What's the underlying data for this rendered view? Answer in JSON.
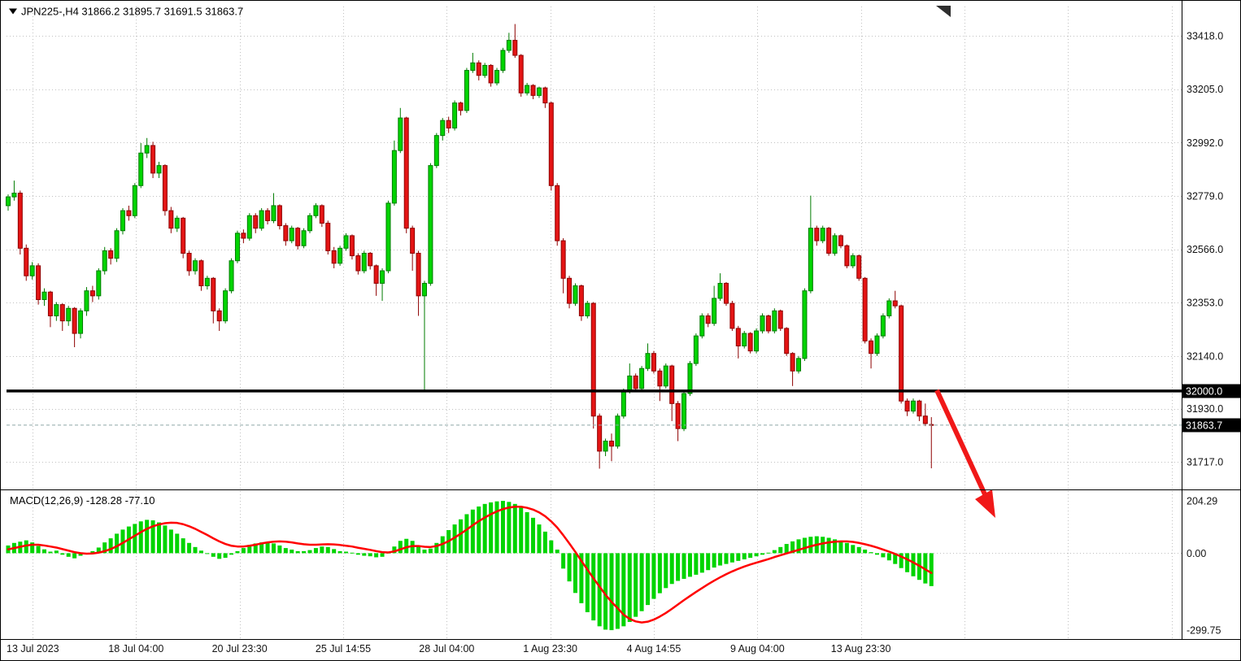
{
  "header": {
    "symbol_info": "JPN225-,H4  31866.2 31895.7 31691.5 31863.7"
  },
  "price_axis": {
    "ticks": [
      "33418.0",
      "33205.0",
      "32992.0",
      "32779.0",
      "32566.0",
      "32353.0",
      "32140.0",
      "31930.0",
      "31717.0"
    ],
    "hline_label": "32000.0",
    "current_label": "31863.7"
  },
  "macd": {
    "label": "MACD(12,26,9) -128.28 -77.10",
    "ticks": [
      "204.29",
      "0.00",
      "-299.75"
    ]
  },
  "time_axis": {
    "labels": [
      "13 Jul 2023",
      "18 Jul 04:00",
      "20 Jul 23:30",
      "25 Jul 14:55",
      "28 Jul 04:00",
      "1 Aug 23:30",
      "4 Aug 14:55",
      "9 Aug 04:00",
      "13 Aug 23:30"
    ]
  },
  "colors": {
    "background": "#ffffff",
    "grid": "#c0c0c0",
    "bull": "#00d400",
    "bull_border": "#007c00",
    "bear": "#e41414",
    "bear_border": "#8e0000",
    "macd_hist": "#00d400",
    "signal": "#ff0000",
    "level_line": "#000000",
    "current_line": "#8fa8a8",
    "arrow": "#f01818",
    "badge_bg": "#000000",
    "badge_text": "#ffffff",
    "axis_text": "#141414"
  },
  "chart_data": [
    {
      "type": "candlestick",
      "symbol": "JPN225-",
      "timeframe": "H4",
      "open": 31866.2,
      "high": 31895.7,
      "low": 31691.5,
      "close": 31863.7,
      "support_line": 32000.0,
      "current_price": 31863.7,
      "ylim": [
        31610,
        33535
      ],
      "y_ticks": [
        33418.0,
        33205.0,
        32992.0,
        32779.0,
        32566.0,
        32353.0,
        32140.0,
        31930.0,
        31717.0
      ],
      "ohlc": [
        [
          32740,
          32785,
          32720,
          32775
        ],
        [
          32775,
          32840,
          32760,
          32790
        ],
        [
          32790,
          32800,
          32545,
          32570
        ],
        [
          32570,
          32585,
          32440,
          32460
        ],
        [
          32460,
          32515,
          32445,
          32500
        ],
        [
          32500,
          32510,
          32345,
          32365
        ],
        [
          32365,
          32410,
          32340,
          32395
        ],
        [
          32395,
          32400,
          32255,
          32300
        ],
        [
          32300,
          32355,
          32280,
          32345
        ],
        [
          32345,
          32350,
          32240,
          32280
        ],
        [
          32280,
          32340,
          32260,
          32330
        ],
        [
          32330,
          32335,
          32175,
          32230
        ],
        [
          32230,
          32330,
          32210,
          32320
        ],
        [
          32320,
          32415,
          32300,
          32400
        ],
        [
          32400,
          32420,
          32355,
          32380
        ],
        [
          32380,
          32490,
          32365,
          32480
        ],
        [
          32480,
          32575,
          32465,
          32560
        ],
        [
          32560,
          32570,
          32505,
          32530
        ],
        [
          32530,
          32650,
          32515,
          32640
        ],
        [
          32640,
          32730,
          32625,
          32720
        ],
        [
          32720,
          32740,
          32680,
          32700
        ],
        [
          32700,
          32830,
          32690,
          32820
        ],
        [
          32820,
          32990,
          32810,
          32950
        ],
        [
          32950,
          33010,
          32930,
          32980
        ],
        [
          32980,
          32995,
          32850,
          32870
        ],
        [
          32870,
          32915,
          32850,
          32900
        ],
        [
          32900,
          32905,
          32700,
          32720
        ],
        [
          32720,
          32735,
          32630,
          32650
        ],
        [
          32650,
          32700,
          32635,
          32690
        ],
        [
          32690,
          32695,
          32530,
          32550
        ],
        [
          32550,
          32560,
          32460,
          32480
        ],
        [
          32480,
          32530,
          32465,
          32520
        ],
        [
          32520,
          32525,
          32400,
          32420
        ],
        [
          32420,
          32460,
          32405,
          32450
        ],
        [
          32450,
          32455,
          32270,
          32320
        ],
        [
          32320,
          32330,
          32240,
          32280
        ],
        [
          32280,
          32410,
          32270,
          32400
        ],
        [
          32400,
          32530,
          32390,
          32520
        ],
        [
          32520,
          32640,
          32510,
          32630
        ],
        [
          32630,
          32645,
          32590,
          32610
        ],
        [
          32610,
          32710,
          32600,
          32700
        ],
        [
          32700,
          32710,
          32630,
          32650
        ],
        [
          32650,
          32730,
          32640,
          32720
        ],
        [
          32720,
          32730,
          32665,
          32680
        ],
        [
          32680,
          32790,
          32670,
          32740
        ],
        [
          32740,
          32745,
          32645,
          32660
        ],
        [
          32660,
          32670,
          32580,
          32600
        ],
        [
          32600,
          32660,
          32590,
          32650
        ],
        [
          32650,
          32655,
          32565,
          32580
        ],
        [
          32580,
          32650,
          32570,
          32640
        ],
        [
          32640,
          32710,
          32630,
          32700
        ],
        [
          32700,
          32750,
          32690,
          32740
        ],
        [
          32740,
          32745,
          32655,
          32670
        ],
        [
          32670,
          32680,
          32545,
          32560
        ],
        [
          32560,
          32575,
          32490,
          32510
        ],
        [
          32510,
          32580,
          32500,
          32570
        ],
        [
          32570,
          32630,
          32560,
          32620
        ],
        [
          32620,
          32625,
          32525,
          32540
        ],
        [
          32540,
          32550,
          32465,
          32480
        ],
        [
          32480,
          32560,
          32470,
          32550
        ],
        [
          32550,
          32555,
          32485,
          32500
        ],
        [
          32500,
          32505,
          32380,
          32430
        ],
        [
          32430,
          32490,
          32360,
          32480
        ],
        [
          32480,
          32760,
          32470,
          32750
        ],
        [
          32750,
          33000,
          32740,
          32960
        ],
        [
          32960,
          33130,
          32950,
          33090
        ],
        [
          33090,
          33095,
          32630,
          32650
        ],
        [
          32650,
          32660,
          32480,
          32550
        ],
        [
          32550,
          32560,
          32300,
          32380
        ],
        [
          32380,
          32440,
          32005,
          32430
        ],
        [
          32430,
          32910,
          32420,
          32900
        ],
        [
          32900,
          33030,
          32890,
          33020
        ],
        [
          33020,
          33090,
          33000,
          33080
        ],
        [
          33080,
          33095,
          33030,
          33050
        ],
        [
          33050,
          33160,
          33040,
          33150
        ],
        [
          33150,
          33155,
          33100,
          33120
        ],
        [
          33120,
          33290,
          33110,
          33280
        ],
        [
          33280,
          33350,
          33270,
          33310
        ],
        [
          33310,
          33320,
          33240,
          33260
        ],
        [
          33260,
          33310,
          33250,
          33300
        ],
        [
          33300,
          33305,
          33215,
          33230
        ],
        [
          33230,
          33290,
          33220,
          33280
        ],
        [
          33280,
          33370,
          33270,
          33360
        ],
        [
          33360,
          33430,
          33350,
          33400
        ],
        [
          33400,
          33465,
          33330,
          33340
        ],
        [
          33340,
          33345,
          33175,
          33190
        ],
        [
          33190,
          33230,
          33180,
          33220
        ],
        [
          33220,
          33225,
          33165,
          33180
        ],
        [
          33180,
          33215,
          33170,
          33210
        ],
        [
          33210,
          33215,
          33130,
          33150
        ],
        [
          33150,
          33155,
          32800,
          32820
        ],
        [
          32820,
          32830,
          32580,
          32600
        ],
        [
          32600,
          32610,
          32390,
          32450
        ],
        [
          32450,
          32460,
          32330,
          32350
        ],
        [
          32350,
          32430,
          32340,
          32420
        ],
        [
          32420,
          32425,
          32280,
          32300
        ],
        [
          32300,
          32360,
          32290,
          32350
        ],
        [
          32350,
          32355,
          31850,
          31900
        ],
        [
          31900,
          31910,
          31690,
          31760
        ],
        [
          31760,
          31810,
          31740,
          31800
        ],
        [
          31800,
          31830,
          31720,
          31780
        ],
        [
          31780,
          31910,
          31770,
          31900
        ],
        [
          31900,
          32010,
          31890,
          32000
        ],
        [
          32000,
          32110,
          31990,
          32060
        ],
        [
          32060,
          32070,
          31995,
          32010
        ],
        [
          32010,
          32100,
          32000,
          32090
        ],
        [
          32090,
          32190,
          32080,
          32150
        ],
        [
          32150,
          32160,
          32070,
          32080
        ],
        [
          32080,
          32090,
          31960,
          32020
        ],
        [
          32020,
          32110,
          32010,
          32100
        ],
        [
          32100,
          32105,
          31880,
          31950
        ],
        [
          31950,
          31960,
          31800,
          31850
        ],
        [
          31850,
          32000,
          31840,
          31990
        ],
        [
          31990,
          32120,
          31980,
          32110
        ],
        [
          32110,
          32230,
          32100,
          32220
        ],
        [
          32220,
          32310,
          32210,
          32300
        ],
        [
          32300,
          32310,
          32255,
          32270
        ],
        [
          32270,
          32420,
          32260,
          32370
        ],
        [
          32370,
          32470,
          32360,
          32430
        ],
        [
          32430,
          32435,
          32340,
          32350
        ],
        [
          32350,
          32360,
          32240,
          32250
        ],
        [
          32250,
          32260,
          32130,
          32180
        ],
        [
          32180,
          32240,
          32170,
          32230
        ],
        [
          32230,
          32235,
          32150,
          32160
        ],
        [
          32160,
          32250,
          32150,
          32240
        ],
        [
          32240,
          32310,
          32230,
          32300
        ],
        [
          32300,
          32305,
          32230,
          32240
        ],
        [
          32240,
          32330,
          32230,
          32320
        ],
        [
          32320,
          32325,
          32240,
          32250
        ],
        [
          32250,
          32255,
          32140,
          32150
        ],
        [
          32150,
          32155,
          32020,
          32080
        ],
        [
          32080,
          32140,
          32070,
          32130
        ],
        [
          32130,
          32410,
          32120,
          32400
        ],
        [
          32400,
          32780,
          32390,
          32650
        ],
        [
          32650,
          32660,
          32580,
          32600
        ],
        [
          32600,
          32660,
          32590,
          32650
        ],
        [
          32650,
          32655,
          32540,
          32550
        ],
        [
          32550,
          32630,
          32540,
          32620
        ],
        [
          32620,
          32625,
          32570,
          32580
        ],
        [
          32580,
          32585,
          32490,
          32500
        ],
        [
          32500,
          32550,
          32490,
          32540
        ],
        [
          32540,
          32545,
          32440,
          32450
        ],
        [
          32450,
          32455,
          32190,
          32200
        ],
        [
          32200,
          32210,
          32090,
          32150
        ],
        [
          32150,
          32230,
          32140,
          32220
        ],
        [
          32220,
          32310,
          32210,
          32300
        ],
        [
          32300,
          32370,
          32290,
          32360
        ],
        [
          32360,
          32400,
          32330,
          32340
        ],
        [
          32340,
          32345,
          31950,
          31960
        ],
        [
          31960,
          31970,
          31900,
          31920
        ],
        [
          31920,
          31970,
          31910,
          31960
        ],
        [
          31960,
          31965,
          31880,
          31900
        ],
        [
          31900,
          31950,
          31860,
          31870
        ],
        [
          31866.2,
          31895.7,
          31691.5,
          31863.7
        ]
      ]
    },
    {
      "type": "bar",
      "name": "MACD(12,26,9)",
      "macd_value": -128.28,
      "signal_value": -77.1,
      "ylim": [
        -330,
        235
      ],
      "y_ticks": [
        204.29,
        0.0,
        -299.75
      ],
      "histogram": [
        30,
        40,
        45,
        50,
        42,
        28,
        15,
        6,
        10,
        -6,
        -14,
        -20,
        -10,
        0,
        8,
        22,
        42,
        58,
        76,
        92,
        104,
        114,
        124,
        130,
        128,
        120,
        108,
        92,
        76,
        58,
        40,
        24,
        10,
        -2,
        -14,
        -22,
        -18,
        -6,
        8,
        20,
        32,
        38,
        42,
        40,
        38,
        30,
        20,
        14,
        8,
        8,
        12,
        20,
        26,
        24,
        16,
        8,
        6,
        2,
        -6,
        -10,
        -12,
        -16,
        -14,
        2,
        26,
        48,
        56,
        48,
        30,
        14,
        18,
        40,
        66,
        90,
        112,
        132,
        152,
        170,
        182,
        192,
        198,
        202,
        204,
        200,
        192,
        178,
        160,
        138,
        112,
        84,
        50,
        14,
        -60,
        -110,
        -155,
        -195,
        -230,
        -262,
        -285,
        -298,
        -300,
        -295,
        -285,
        -268,
        -248,
        -226,
        -202,
        -178,
        -156,
        -136,
        -120,
        -108,
        -100,
        -92,
        -84,
        -76,
        -66,
        -56,
        -48,
        -42,
        -36,
        -30,
        -24,
        -18,
        -12,
        -6,
        2,
        12,
        24,
        36,
        46,
        54,
        60,
        64,
        66,
        64,
        60,
        54,
        48,
        40,
        32,
        24,
        14,
        4,
        -6,
        -16,
        -28,
        -42,
        -58,
        -74,
        -90,
        -104,
        -118,
        -128.28
      ],
      "signal": [
        15,
        20,
        25,
        30,
        33,
        33,
        30,
        26,
        22,
        16,
        10,
        4,
        0,
        -2,
        -1,
        2,
        8,
        16,
        27,
        40,
        54,
        68,
        82,
        95,
        105,
        112,
        117,
        119,
        118,
        113,
        105,
        95,
        83,
        71,
        58,
        46,
        36,
        29,
        26,
        26,
        29,
        33,
        38,
        42,
        45,
        46,
        45,
        42,
        38,
        35,
        33,
        33,
        34,
        35,
        34,
        32,
        29,
        26,
        21,
        17,
        13,
        8,
        4,
        3,
        7,
        15,
        23,
        28,
        28,
        25,
        24,
        28,
        36,
        47,
        61,
        76,
        92,
        109,
        125,
        139,
        152,
        163,
        172,
        178,
        181,
        181,
        177,
        170,
        159,
        144,
        124,
        100,
        70,
        38,
        5,
        -30,
        -64,
        -98,
        -130,
        -162,
        -190,
        -214,
        -240,
        -256,
        -266,
        -270,
        -267,
        -259,
        -247,
        -233,
        -217,
        -200,
        -183,
        -167,
        -151,
        -136,
        -121,
        -107,
        -94,
        -82,
        -71,
        -61,
        -52,
        -44,
        -37,
        -30,
        -23,
        -15,
        -8,
        -1,
        6,
        13,
        20,
        27,
        33,
        38,
        42,
        45,
        46,
        46,
        44,
        40,
        35,
        29,
        22,
        14,
        6,
        -3,
        -13,
        -24,
        -36,
        -49,
        -63,
        -77.1
      ]
    }
  ]
}
